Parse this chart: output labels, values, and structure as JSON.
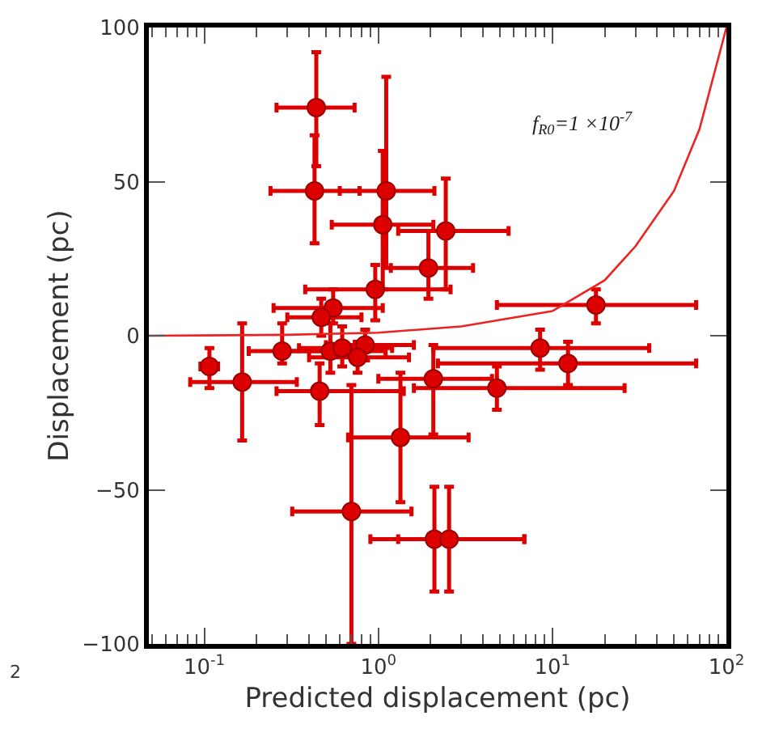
{
  "chart_data": {
    "type": "scatter",
    "xlabel": "Predicted displacement (pc)",
    "ylabel": "Displacement (pc)",
    "log": "x",
    "xlim": [
      0.048,
      100
    ],
    "ylim": [
      -100,
      100
    ],
    "xticks": [
      {
        "value": 0.1,
        "label": "10$^{-1}$"
      },
      {
        "value": 1,
        "label": "10$^{0}$"
      },
      {
        "value": 10,
        "label": "10$^{1}$"
      },
      {
        "value": 100,
        "label": "10$^{2}$"
      }
    ],
    "yticks": [
      -100,
      -50,
      0,
      50,
      100
    ],
    "marker": "circle",
    "annotations": [
      "f$_{R0}$=1 ×10$^{-7}$",
      "2"
    ],
    "series": [
      {
        "color": "#dd0000",
        "x": [
          0.44,
          0.43,
          1.11,
          1.06,
          1.94,
          2.44,
          0.96,
          0.55,
          0.47,
          17.8,
          0.28,
          0.107,
          0.165,
          0.53,
          0.62,
          0.84,
          0.76,
          0.46,
          1.34,
          0.7,
          2.07,
          4.8,
          8.5,
          12.3,
          2.1,
          2.55
        ],
        "values": [
          74,
          47,
          47,
          36,
          22,
          34,
          15,
          9,
          6,
          10,
          -5,
          -10,
          -15,
          -5,
          -4,
          -3,
          -7,
          -18,
          -33,
          -57,
          -14,
          -17,
          -4,
          -9,
          -66,
          -66
        ],
        "xerrors": [
          [
            0.26,
            0.73
          ],
          [
            0.24,
            0.78
          ],
          [
            0.6,
            2.1
          ],
          [
            0.54,
            2.07
          ],
          [
            1.18,
            3.5
          ],
          [
            1.3,
            5.6
          ],
          [
            0.38,
            2.6
          ],
          [
            0.25,
            1.06
          ],
          [
            0.3,
            0.8
          ],
          [
            4.8,
            67
          ],
          [
            0.18,
            0.67
          ],
          [
            0.095,
            0.12
          ],
          [
            0.083,
            0.34
          ],
          [
            0.3,
            1.1
          ],
          [
            0.35,
            1.2
          ],
          [
            0.5,
            1.6
          ],
          [
            0.4,
            1.5
          ],
          [
            0.26,
            1.4
          ],
          [
            0.67,
            3.3
          ],
          [
            0.32,
            1.55
          ],
          [
            1.0,
            4.5
          ],
          [
            1.6,
            26
          ],
          [
            2.07,
            36
          ],
          [
            2.2,
            67
          ],
          [
            0.9,
            6.9
          ],
          [
            1.3,
            6.9
          ]
        ],
        "errors": [
          [
            55,
            92
          ],
          [
            30,
            65
          ],
          [
            22,
            84
          ],
          [
            15,
            60
          ],
          [
            12,
            34
          ],
          [
            15,
            51
          ],
          [
            5,
            23
          ],
          [
            4,
            15
          ],
          [
            0,
            12
          ],
          [
            4,
            15
          ],
          [
            -9,
            4
          ],
          [
            -17,
            -4
          ],
          [
            -34,
            4
          ],
          [
            -12,
            4
          ],
          [
            -10,
            3
          ],
          [
            -8,
            2
          ],
          [
            -12,
            -2
          ],
          [
            -29,
            -9
          ],
          [
            -54,
            -12
          ],
          [
            -100,
            -16
          ],
          [
            -32,
            -3
          ],
          [
            -24,
            -10
          ],
          [
            -11,
            2
          ],
          [
            -16,
            -2
          ],
          [
            -83,
            -49
          ],
          [
            -83,
            -49
          ]
        ]
      },
      {
        "type": "line",
        "color": "#ee2222",
        "marker": "none",
        "x": [
          0.048,
          0.1,
          0.3,
          1,
          3,
          10,
          20,
          30,
          50,
          70,
          100
        ],
        "values": [
          0,
          0.1,
          0.3,
          1,
          3,
          8,
          18,
          29,
          47,
          67,
          100
        ]
      }
    ]
  }
}
